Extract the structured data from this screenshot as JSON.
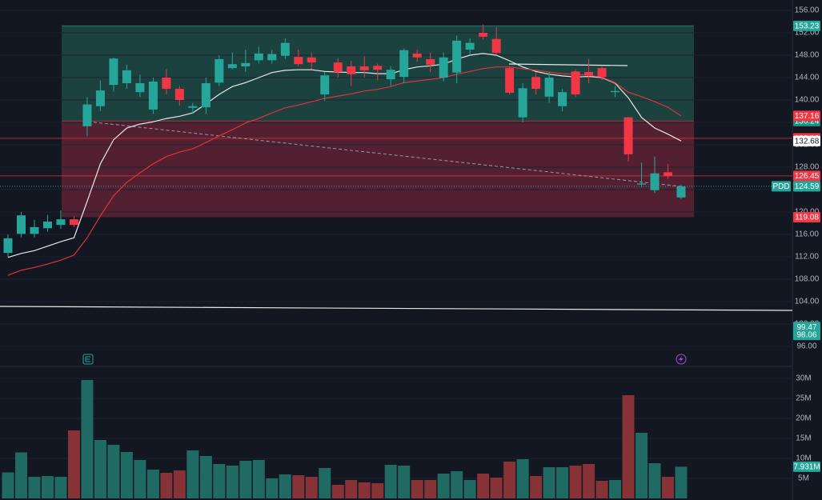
{
  "chart_data": {
    "type": "candlestick",
    "symbol": "PDD",
    "ylim": [
      96,
      156
    ],
    "yticks": [
      {
        "value": 96,
        "label": "96.00"
      },
      {
        "value": 100,
        "label": "100.00"
      },
      {
        "value": 104,
        "label": "104.00"
      },
      {
        "value": 108,
        "label": "108.00"
      },
      {
        "value": 112,
        "label": "112.00"
      },
      {
        "value": 116,
        "label": "116.00"
      },
      {
        "value": 120,
        "label": "120.00"
      },
      {
        "value": 124,
        "label": "124.00"
      },
      {
        "value": 128,
        "label": "128.00"
      },
      {
        "value": 132,
        "label": "132.00"
      },
      {
        "value": 136,
        "label": "136.00"
      },
      {
        "value": 140,
        "label": "140.00"
      },
      {
        "value": 144,
        "label": "144.00"
      },
      {
        "value": 148,
        "label": "148.00"
      },
      {
        "value": 152,
        "label": "152.00"
      },
      {
        "value": 156,
        "label": "156.00"
      }
    ],
    "grid": true,
    "up_color": "#26a69a",
    "down_color": "#f23645",
    "open": [
      112.7,
      116.1,
      116.1,
      117.1,
      117.7,
      118.7,
      135.3,
      138.9,
      142.7,
      143,
      141.4,
      138.3,
      144,
      142,
      138.6,
      138.7,
      143.1,
      145.7,
      146,
      147.1,
      147.1,
      147.9,
      147.7,
      147.6,
      141,
      146.7,
      146,
      146,
      146.1,
      143.7,
      144.1,
      148.3,
      147.3,
      144,
      144.9,
      149,
      152,
      150.9,
      145.7,
      136.9,
      144.1,
      140.6,
      138.9,
      145.1,
      145,
      145.7,
      141.4,
      136.9,
      124.9,
      123.9,
      127.1,
      122.6
    ],
    "high": [
      116,
      120,
      118.6,
      119.5,
      120.3,
      119.2,
      140.5,
      143.5,
      147.6,
      146.3,
      144.5,
      144,
      145.5,
      142.5,
      139.5,
      144,
      148,
      148.5,
      149,
      149.5,
      149,
      151,
      149,
      148.5,
      145,
      147.5,
      147,
      147.8,
      146.5,
      146,
      149.2,
      149,
      148.5,
      148.5,
      151.5,
      151,
      153.5,
      153,
      146,
      143,
      145,
      145,
      142,
      145.5,
      147.3,
      146,
      142.5,
      137,
      128.8,
      129.9,
      128.6,
      124.8
    ],
    "low": [
      112,
      115.5,
      115.5,
      116.5,
      117,
      117.3,
      133.5,
      138,
      141.5,
      142,
      140.5,
      137.5,
      141,
      139,
      137.5,
      137.5,
      142.5,
      145.5,
      145,
      146.5,
      146.5,
      147.3,
      146,
      145.5,
      139.8,
      144,
      142.5,
      144,
      143.5,
      142.5,
      143,
      146.8,
      145,
      143.3,
      143,
      148,
      150.8,
      148,
      141,
      136,
      141,
      139.5,
      138,
      140.5,
      143,
      143.5,
      140.5,
      129,
      124.4,
      123.4,
      125.9,
      122.3
    ],
    "close": [
      115.3,
      119.4,
      117.3,
      118.3,
      118.7,
      117.7,
      139.2,
      141.7,
      147.4,
      145.3,
      143,
      143.3,
      142,
      140,
      138.9,
      143,
      147.3,
      146.4,
      146.6,
      148.3,
      148.2,
      150.2,
      146.4,
      146.7,
      144.4,
      145,
      144.6,
      145.3,
      145.4,
      145.4,
      148.9,
      147.6,
      146.3,
      147.6,
      150.6,
      150.2,
      151.3,
      148.4,
      141.3,
      142.1,
      142,
      144,
      141.4,
      141,
      144.4,
      144.1,
      141.6,
      130.3,
      125.1,
      126.9,
      126.4,
      124.59
    ],
    "lines": [
      {
        "color": "#e8e8e8",
        "values": [
          111.9,
          112.6,
          113.1,
          113.9,
          114.7,
          115.4,
          121.9,
          128.6,
          132.9,
          135,
          135.7,
          136.1,
          136.7,
          137.1,
          137.7,
          139.3,
          141,
          142.4,
          143.1,
          144,
          144.9,
          145.3,
          145.4,
          145.4,
          145.1,
          145,
          144.9,
          144.9,
          144.7,
          144.7,
          145.4,
          145.9,
          146.1,
          146.4,
          147.3,
          148,
          148.3,
          148,
          147,
          145.9,
          145.1,
          144.6,
          144.3,
          144.1,
          144.2,
          144,
          143,
          140.4,
          136.9,
          135,
          133.9,
          132.68
        ]
      },
      {
        "color": "#e0323f",
        "values": [
          108.7,
          109.6,
          110.1,
          110.7,
          111.4,
          112.3,
          115.4,
          119.3,
          122.9,
          125.3,
          127,
          128.6,
          129.9,
          130.7,
          131.3,
          132.4,
          133.6,
          134.7,
          135.9,
          136.7,
          137.7,
          138.6,
          139.1,
          139.7,
          140.3,
          140.7,
          141.1,
          141.6,
          141.9,
          142.4,
          143.1,
          143.4,
          143.7,
          144,
          144.6,
          145.1,
          145.6,
          145.9,
          145.9,
          145.6,
          145.3,
          145,
          144.7,
          144.6,
          144.4,
          144.1,
          143.1,
          141.4,
          140.6,
          139.7,
          138.7,
          137.16
        ]
      }
    ],
    "zones": [
      {
        "top": 153.23,
        "bottom": 136.24,
        "color": "#1d4a44",
        "tag_color": "#26a69a"
      },
      {
        "top": 136.24,
        "bottom": 119.08,
        "color": "#5e2232",
        "tag_color": "#f23645"
      }
    ],
    "levels": [
      {
        "value": 137.16,
        "color": "#f23645",
        "line": "none"
      },
      {
        "value": 133.16,
        "color": "#f23645",
        "line": "solid"
      },
      {
        "value": 132.68,
        "color": "#ffffff",
        "line": "none"
      },
      {
        "value": 126.45,
        "color": "#f23645",
        "line": "solid"
      },
      {
        "value": 124.59,
        "color": "#26a69a",
        "line": "dashed"
      },
      {
        "value": 99.47,
        "color": "#26a69a",
        "line": "none"
      },
      {
        "value": 98.06,
        "color": "#26a69a",
        "line": "none"
      }
    ],
    "volume": {
      "ylim": [
        0,
        30
      ],
      "yticks": [
        {
          "value": 5,
          "label": "5M"
        },
        {
          "value": 10,
          "label": "10M"
        },
        {
          "value": 15,
          "label": "15M"
        },
        {
          "value": 20,
          "label": "20M"
        },
        {
          "value": 25,
          "label": "25M"
        },
        {
          "value": 30,
          "label": "30M"
        }
      ],
      "values": [
        6.5,
        11.5,
        5.4,
        5.6,
        5.4,
        17,
        29.6,
        14.6,
        13.4,
        11.6,
        9.6,
        7.2,
        6.4,
        7,
        12,
        10.6,
        8.6,
        8.2,
        9.4,
        9.6,
        5,
        6,
        5.8,
        5.4,
        7.6,
        3.4,
        4.6,
        4,
        3.8,
        8.4,
        8.2,
        4.6,
        4.6,
        6.2,
        6.8,
        4.6,
        6.2,
        5.2,
        9.2,
        9.8,
        5.6,
        7.8,
        7.8,
        8.2,
        8.6,
        4.4,
        4.6,
        25.8,
        16.4,
        8.8,
        5.4,
        7.931
      ],
      "last": {
        "value": 7.931,
        "label": "7.931M"
      },
      "up_color": "#1f6b64",
      "down_color": "#873236"
    }
  }
}
